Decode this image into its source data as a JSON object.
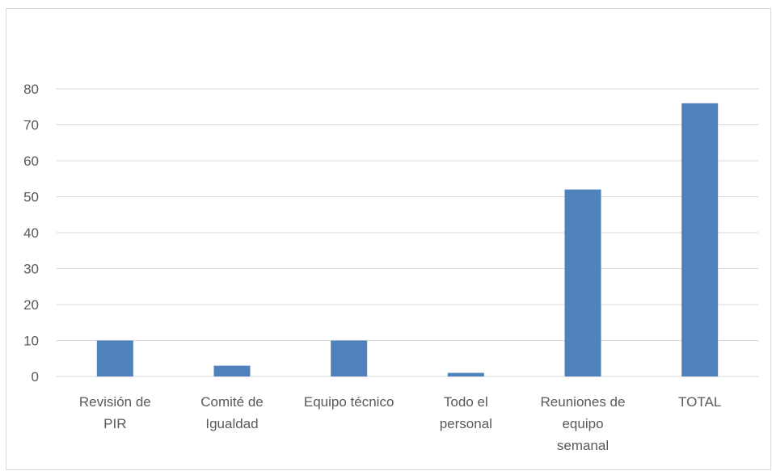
{
  "chart_data": {
    "type": "bar",
    "categories": [
      [
        "Revisión de",
        "PIR"
      ],
      [
        "Comité de",
        "Igualdad"
      ],
      [
        "Equipo técnico"
      ],
      [
        "Todo el",
        "personal"
      ],
      [
        "Reuniones de",
        "equipo",
        "semanal"
      ],
      [
        "TOTAL"
      ]
    ],
    "values": [
      10,
      3,
      10,
      1,
      52,
      76
    ],
    "ylim": [
      0,
      80
    ],
    "yticks": [
      0,
      10,
      20,
      30,
      40,
      50,
      60,
      70,
      80
    ],
    "grid": true,
    "bar_color": "#4f81bd",
    "gridline_color": "#d9d9d9"
  }
}
